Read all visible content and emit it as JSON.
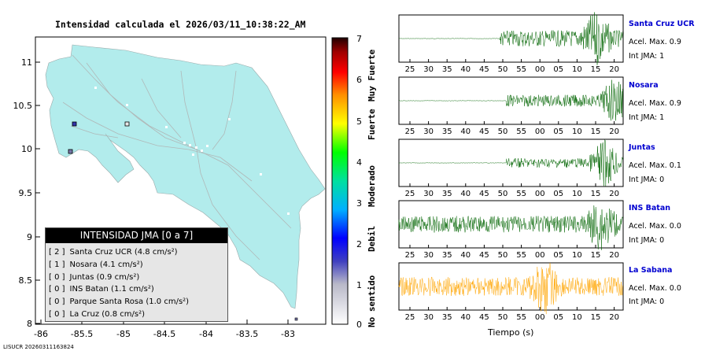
{
  "title": "Intensidad calculada el 2026/03/11_10:38:22_AM",
  "footer": "LISUCR 20260311163824",
  "map": {
    "x_ticks": [
      "-86",
      "-85.5",
      "-85",
      "-84.5",
      "-84",
      "-83.5",
      "-83"
    ],
    "y_ticks": [
      "11",
      "10.5",
      "10",
      "9.5",
      "9",
      "8.5",
      "8"
    ],
    "land_color": "#b2ecec"
  },
  "legend": {
    "title": "INTENSIDAD JMA [0 a 7]",
    "entries": [
      {
        "level": "[ 2 ]",
        "text": "Santa Cruz UCR (4.8 cm/s²)"
      },
      {
        "level": "[ 1 ]",
        "text": "Nosara (4.1 cm/s²)"
      },
      {
        "level": "[ 0 ]",
        "text": "Juntas (0.9 cm/s²)"
      },
      {
        "level": "[ 0 ]",
        "text": "INS Batan (1.1 cm/s²)"
      },
      {
        "level": "[ 0 ]",
        "text": "Parque Santa Rosa (1.0 cm/s²)"
      },
      {
        "level": "[ 0 ]",
        "text": "La Cruz (0.8 cm/s²)"
      }
    ]
  },
  "colorbar": {
    "ticks": [
      "7",
      "6",
      "5",
      "4",
      "3",
      "2",
      "1",
      "0"
    ],
    "words": [
      "Muy Fuerte",
      "Fuerte",
      "Moderado",
      "Debil",
      "No sentido"
    ]
  },
  "traces": {
    "x_ticks": [
      "25",
      "30",
      "35",
      "40",
      "45",
      "50",
      "55",
      "00",
      "05",
      "10",
      "15",
      "20"
    ],
    "x_label": "Tiempo (s)",
    "stations": [
      {
        "name": "Santa Cruz UCR",
        "acel": "Acel. Max. 0.9",
        "int": "Int JMA: 1",
        "color": "#006400"
      },
      {
        "name": "Nosara",
        "acel": "Acel. Max. 0.9",
        "int": "Int JMA: 1",
        "color": "#006400"
      },
      {
        "name": "Juntas",
        "acel": "Acel. Max. 0.1",
        "int": "Int JMA: 0",
        "color": "#006400"
      },
      {
        "name": "INS Batan",
        "acel": "Acel. Max. 0.0",
        "int": "Int JMA: 0",
        "color": "#006400"
      },
      {
        "name": "La Sabana",
        "acel": "Acel. Max. 0.0",
        "int": "Int JMA: 0",
        "color": "#ffa500"
      }
    ]
  }
}
